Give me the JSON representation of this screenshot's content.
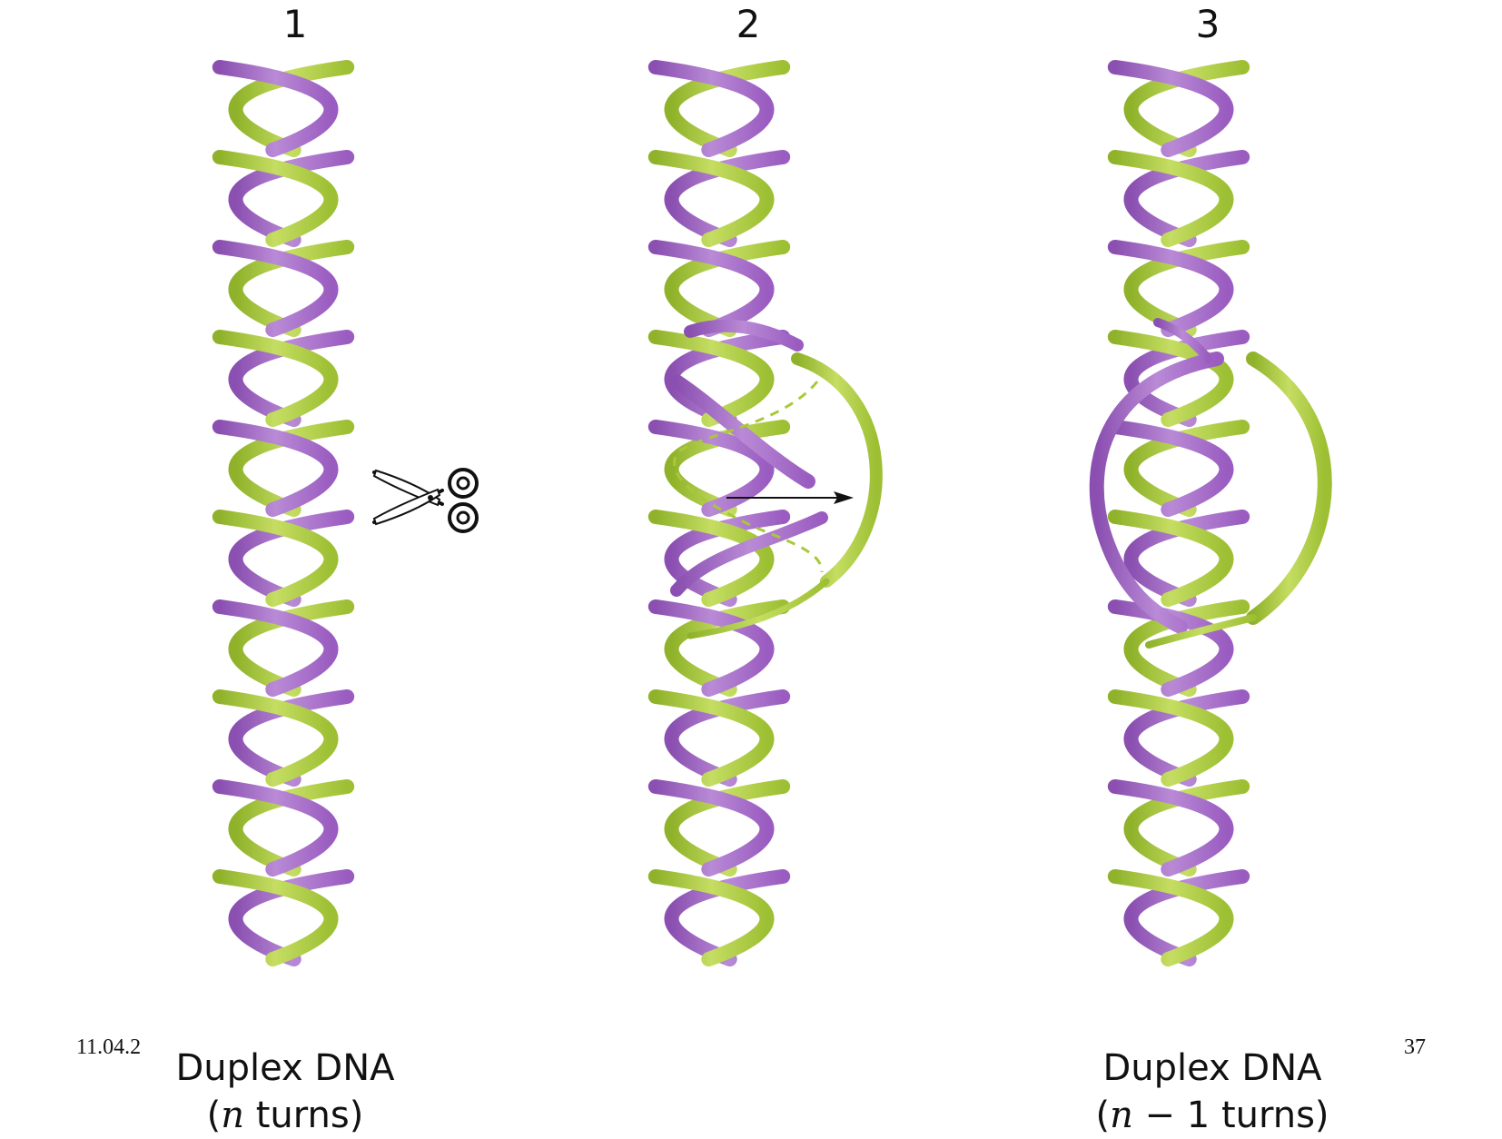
{
  "panels": [
    {
      "number": "1"
    },
    {
      "number": "2"
    },
    {
      "number": "3"
    }
  ],
  "captions": {
    "left": {
      "line1": "Duplex DNA",
      "line2_open": "(",
      "line2_var": "n",
      "line2_rest": " turns)"
    },
    "right": {
      "line1": "Duplex DNA",
      "line2_open": "(",
      "line2_var": "n",
      "line2_rest": " − 1 turns)"
    }
  },
  "footer": {
    "date": "11.04.2",
    "page_number": "37"
  },
  "colors": {
    "strand_purple": "#a566c4",
    "strand_purple_dark": "#7d3f9c",
    "strand_green": "#a8c83a",
    "strand_green_dark": "#7fa01f",
    "ink": "#111111"
  },
  "icons": {
    "cut_tool": "scissors-icon",
    "direction": "arrow-right-icon"
  }
}
